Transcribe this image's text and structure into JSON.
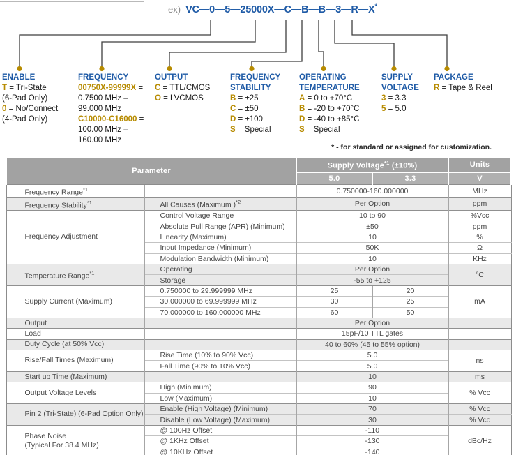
{
  "colors": {
    "accent_blue": "#1E5AA6",
    "code_gold": "#B78B00",
    "connector_gray": "#3F3F3F",
    "header_gray": "#A2A2A2",
    "subheader_gray": "#B0B0B0",
    "row_shade": "#E9E9E9"
  },
  "page": {
    "example_label": "ex)",
    "part_number": "VC—0—5—25000X—C—B—B—3—R—X",
    "part_number_star": "*",
    "customization_note": "* - for standard or assigned for customization."
  },
  "ordering": {
    "fields": [
      {
        "id": "enable",
        "title": [
          "ENABLE"
        ],
        "lines": [
          {
            "code": "T",
            "text": "= Tri-State"
          },
          {
            "text": "(6-Pad Only)"
          },
          {
            "code": "0",
            "text": "= No/Connect"
          },
          {
            "text": "(4-Pad Only)"
          }
        ]
      },
      {
        "id": "frequency",
        "title": [
          "FREQUENCY"
        ],
        "lines": [
          {
            "code": "00750X-99999X",
            "text": "="
          },
          {
            "text": "0.7500 MHz –"
          },
          {
            "text": "99.000 MHz"
          },
          {
            "code": "C10000-C16000",
            "text": "="
          },
          {
            "text": "100.00 MHz –"
          },
          {
            "text": "160.00 MHz"
          }
        ]
      },
      {
        "id": "output",
        "title": [
          "OUTPUT"
        ],
        "lines": [
          {
            "code": "C",
            "text": "= TTL/CMOS"
          },
          {
            "code": "O",
            "text": "= LVCMOS"
          }
        ]
      },
      {
        "id": "frequency-stability",
        "title": [
          "FREQUENCY",
          "STABILITY"
        ],
        "lines": [
          {
            "code": "B",
            "text": "= ±25"
          },
          {
            "code": "C",
            "text": "= ±50"
          },
          {
            "code": "D",
            "text": "= ±100"
          },
          {
            "code": "S",
            "text": "= Special"
          }
        ]
      },
      {
        "id": "operating-temperature",
        "title": [
          "OPERATING",
          "TEMPERATURE"
        ],
        "lines": [
          {
            "code": "A",
            "text": "= 0 to +70°C"
          },
          {
            "code": "B",
            "text": "= -20 to +70°C"
          },
          {
            "code": "D",
            "text": "= -40 to +85°C"
          },
          {
            "code": "S",
            "text": "= Special"
          }
        ]
      },
      {
        "id": "supply-voltage",
        "title": [
          "SUPPLY",
          "VOLTAGE"
        ],
        "lines": [
          {
            "code": "3",
            "text": "= 3.3"
          },
          {
            "code": "5",
            "text": "= 5.0"
          }
        ]
      },
      {
        "id": "package",
        "title": [
          "PACKAGE"
        ],
        "lines": [
          {
            "code": "R",
            "text": "= Tape & Reel"
          }
        ]
      }
    ]
  },
  "table": {
    "header": {
      "parameter": "Parameter",
      "supply_voltage": "Supply Voltage",
      "supply_sup": "*1",
      "supply_tol": "(±10%)",
      "col_50": "5.0",
      "col_33": "3.3",
      "units": "Units",
      "units_v": "V"
    },
    "groups": [
      {
        "shade": false,
        "param": {
          "text": "Frequency Range",
          "sup": "*1"
        },
        "rows": [
          {
            "sub": "",
            "values": [
              {
                "text": "0.750000-160.000000",
                "span": 2
              }
            ],
            "unit": "MHz"
          }
        ]
      },
      {
        "shade": true,
        "param": {
          "text": "Frequency Stability",
          "sup": "*1"
        },
        "rows": [
          {
            "sub": {
              "text": "All Causes (Maximum )",
              "sup": "*2"
            },
            "values": [
              {
                "text": "Per Option",
                "span": 2
              }
            ],
            "unit": "ppm"
          }
        ]
      },
      {
        "shade": false,
        "param": {
          "text": "Frequency Adjustment"
        },
        "rows": [
          {
            "sub": "Control Voltage Range",
            "values": [
              {
                "text": "10 to 90",
                "span": 2
              }
            ],
            "unit": "%Vcc"
          },
          {
            "sub": "Absolute Pull Range (APR) (Minimum)",
            "values": [
              {
                "text": "±50",
                "span": 2
              }
            ],
            "unit": "ppm"
          },
          {
            "sub": "Linearity (Maximum)",
            "values": [
              {
                "text": "10",
                "span": 2
              }
            ],
            "unit": "%"
          },
          {
            "sub": "Input Impedance (Minimum)",
            "values": [
              {
                "text": "50K",
                "span": 2
              }
            ],
            "unit": "Ω"
          },
          {
            "sub": "Modulation Bandwidth (Minimum)",
            "values": [
              {
                "text": "10",
                "span": 2
              }
            ],
            "unit": "KHz"
          }
        ]
      },
      {
        "shade": true,
        "param": {
          "text": "Temperature Range",
          "sup": "*1"
        },
        "unit": {
          "text": "°C",
          "rowspan": 2
        },
        "rows": [
          {
            "sub": "Operating",
            "values": [
              {
                "text": "Per Option",
                "span": 2
              }
            ]
          },
          {
            "sub": "Storage",
            "values": [
              {
                "text": "-55 to +125",
                "span": 2
              }
            ]
          }
        ]
      },
      {
        "shade": false,
        "param": {
          "text": "Supply Current (Maximum)"
        },
        "unit": {
          "text": "mA",
          "rowspan": 3
        },
        "rows": [
          {
            "sub": "0.750000 to 29.999999 MHz",
            "values": [
              {
                "text": "25"
              },
              {
                "text": "20"
              }
            ]
          },
          {
            "sub": "30.000000 to 69.999999 MHz",
            "values": [
              {
                "text": "30"
              },
              {
                "text": "25"
              }
            ]
          },
          {
            "sub": "70.000000 to 160.000000 MHz",
            "values": [
              {
                "text": "60"
              },
              {
                "text": "50"
              }
            ]
          }
        ]
      },
      {
        "shade": true,
        "param": {
          "text": "Output"
        },
        "rows": [
          {
            "sub": "",
            "values": [
              {
                "text": "Per Option",
                "span": 2
              }
            ],
            "unit": ""
          }
        ]
      },
      {
        "shade": false,
        "param": {
          "text": "Load"
        },
        "rows": [
          {
            "sub": "",
            "values": [
              {
                "text": "15pF/10 TTL gates",
                "span": 2
              }
            ],
            "unit": ""
          }
        ]
      },
      {
        "shade": true,
        "param": {
          "text": "Duty Cycle (at 50% Vcc)"
        },
        "rows": [
          {
            "sub": "",
            "values": [
              {
                "text": "40 to 60% (45 to 55% option)",
                "span": 2
              }
            ],
            "unit": ""
          }
        ]
      },
      {
        "shade": false,
        "param": {
          "text": "Rise/Fall Times (Maximum)"
        },
        "unit": {
          "text": "ns",
          "rowspan": 2
        },
        "rows": [
          {
            "sub": "Rise Time (10% to 90% Vcc)",
            "values": [
              {
                "text": "5.0",
                "span": 2
              }
            ]
          },
          {
            "sub": "Fall Time (90% to 10% Vcc)",
            "values": [
              {
                "text": "5.0",
                "span": 2
              }
            ]
          }
        ]
      },
      {
        "shade": true,
        "param": {
          "text": "Start up Time (Maximum)"
        },
        "rows": [
          {
            "sub": "",
            "values": [
              {
                "text": "10",
                "span": 2
              }
            ],
            "unit": "ms"
          }
        ]
      },
      {
        "shade": false,
        "param": {
          "text": "Output Voltage Levels"
        },
        "unit": {
          "text": "% Vcc",
          "rowspan": 2
        },
        "rows": [
          {
            "sub": "High (Minimum)",
            "values": [
              {
                "text": "90",
                "span": 2
              }
            ]
          },
          {
            "sub": "Low (Maximum)",
            "values": [
              {
                "text": "10",
                "span": 2
              }
            ]
          }
        ]
      },
      {
        "shade": true,
        "param": {
          "text": "Pin 2 (Tri-State) (6-Pad Option Only)"
        },
        "rows": [
          {
            "sub": "Enable (High Voltage) (Minimum)",
            "values": [
              {
                "text": "70",
                "span": 2
              }
            ],
            "unit": "% Vcc"
          },
          {
            "sub": "Disable (Low Voltage) (Maximum)",
            "values": [
              {
                "text": "30",
                "span": 2
              }
            ],
            "unit": "% Vcc"
          }
        ]
      },
      {
        "shade": false,
        "param": {
          "lines": [
            "Phase Noise",
            "(Typical For 38.4 MHz)"
          ]
        },
        "unit": {
          "text": "dBc/Hz",
          "rowspan": 3
        },
        "rows": [
          {
            "sub": "@ 100Hz Offset",
            "values": [
              {
                "text": "-110",
                "span": 2
              }
            ]
          },
          {
            "sub": "@ 1KHz Offset",
            "values": [
              {
                "text": "-130",
                "span": 2
              }
            ]
          },
          {
            "sub": "@ 10KHz Offset",
            "values": [
              {
                "text": "-140",
                "span": 2
              }
            ]
          }
        ]
      }
    ]
  }
}
